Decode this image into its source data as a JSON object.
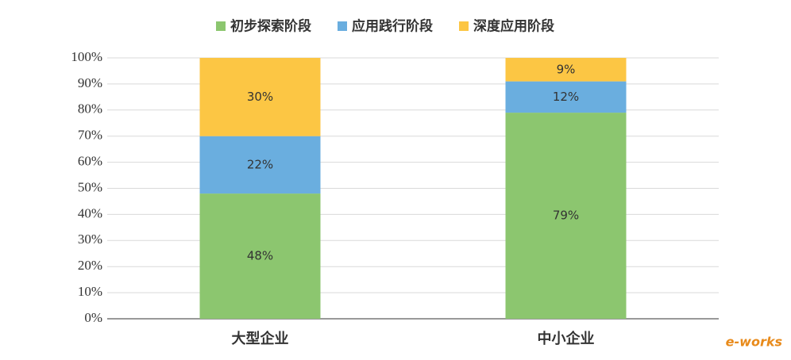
{
  "chart_data": {
    "type": "stacked_bar",
    "categories": [
      "大型企业",
      "中小企业"
    ],
    "series": [
      {
        "name": "初步探索阶段",
        "color": "#8cc66f",
        "values": [
          48,
          79
        ],
        "value_labels": [
          "48%",
          "79%"
        ]
      },
      {
        "name": "应用践行阶段",
        "color": "#6aaedf",
        "values": [
          22,
          12
        ],
        "value_labels": [
          "22%",
          "12%"
        ]
      },
      {
        "name": "深度应用阶段",
        "color": "#fcc644",
        "values": [
          30,
          9
        ],
        "value_labels": [
          "30%",
          "9%"
        ]
      }
    ],
    "ylim": [
      0,
      100
    ],
    "yticks": [
      {
        "value": 0,
        "label": "0%"
      },
      {
        "value": 10,
        "label": "10%"
      },
      {
        "value": 20,
        "label": "20%"
      },
      {
        "value": 30,
        "label": "30%"
      },
      {
        "value": 40,
        "label": "40%"
      },
      {
        "value": 50,
        "label": "50%"
      },
      {
        "value": 60,
        "label": "60%"
      },
      {
        "value": 70,
        "label": "70%"
      },
      {
        "value": 80,
        "label": "80%"
      },
      {
        "value": 90,
        "label": "90%"
      },
      {
        "value": 100,
        "label": "100%"
      }
    ],
    "grid": true,
    "legend": "top",
    "watermark": "e-works"
  }
}
